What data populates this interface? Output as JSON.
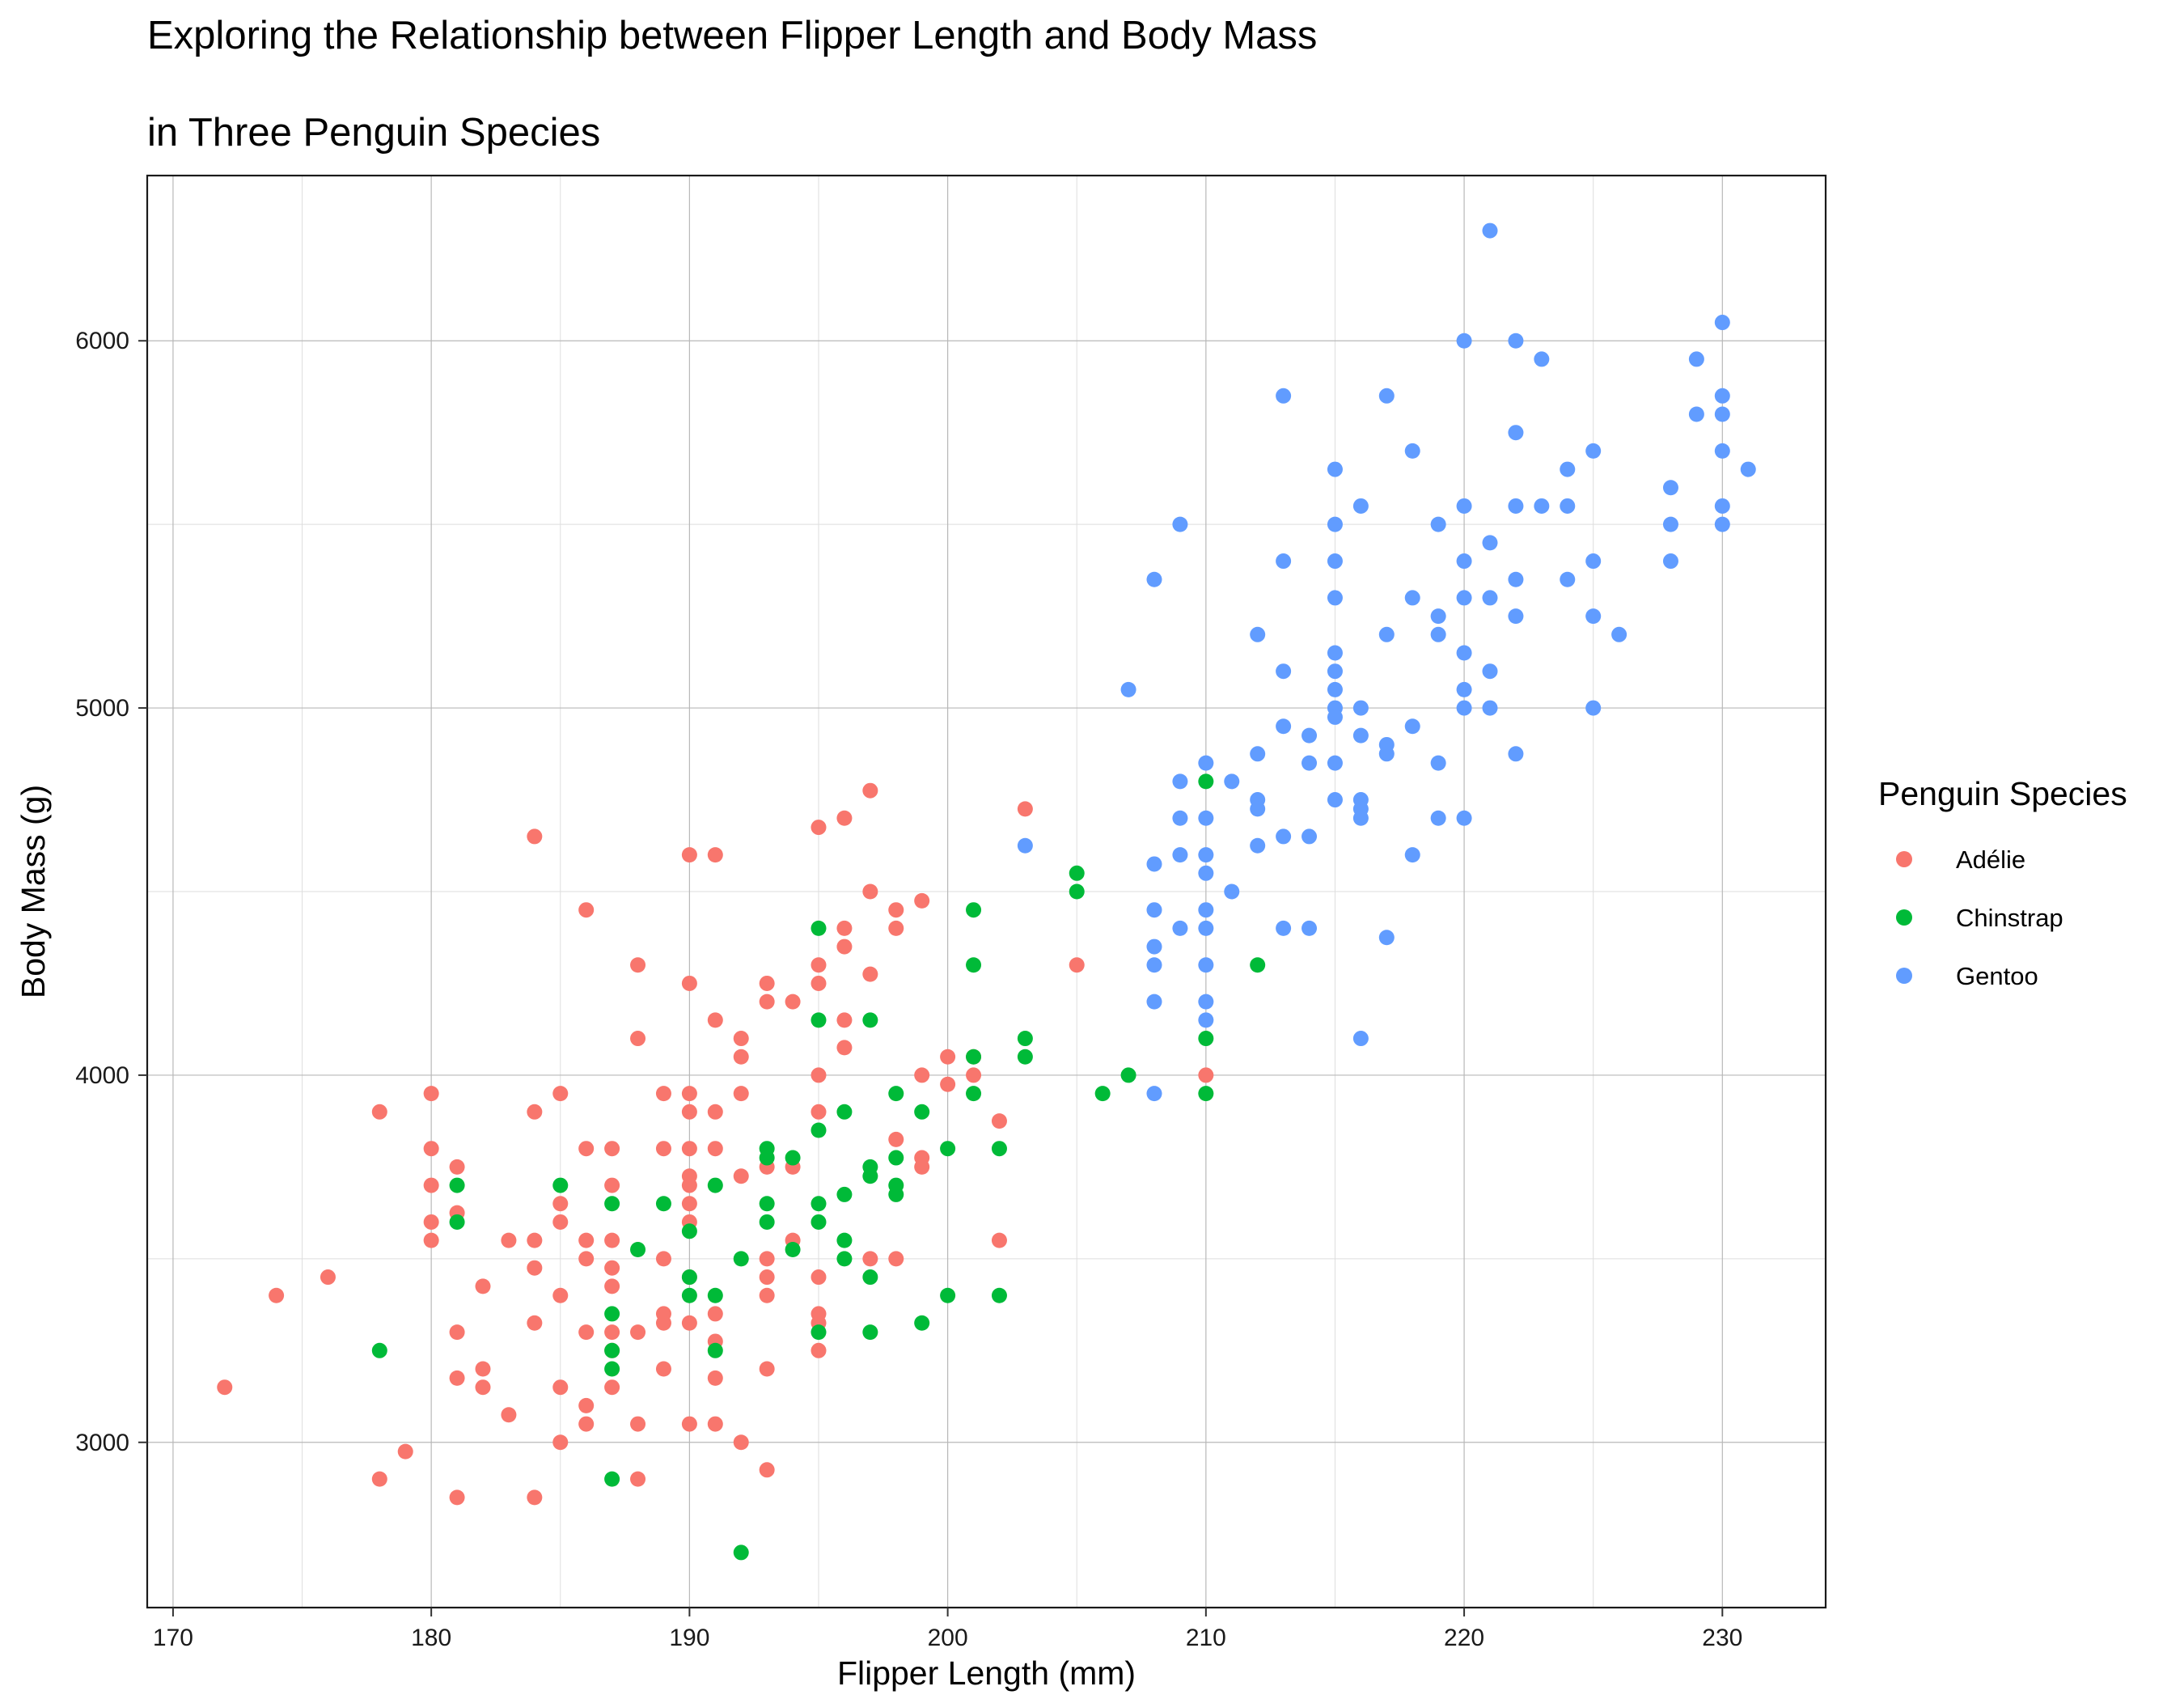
{
  "chart_data": {
    "type": "scatter",
    "title": "Exploring the Relationship between Flipper Length and Body Mass",
    "subtitle": "in Three Penguin Species",
    "xlabel": "Flipper Length (mm)",
    "ylabel": "Body Mass (g)",
    "xlim": [
      169,
      234
    ],
    "ylim": [
      2550,
      6450
    ],
    "x_ticks": [
      170,
      180,
      190,
      200,
      210,
      220,
      230
    ],
    "y_ticks": [
      3000,
      4000,
      5000,
      6000
    ],
    "grid": true,
    "legend": {
      "title": "Penguin Species",
      "position": "right"
    },
    "series": [
      {
        "name": "Adélie",
        "color": "#F8766D",
        "points": [
          [
            172,
            3150
          ],
          [
            174,
            3400
          ],
          [
            176,
            3450
          ],
          [
            178,
            3900
          ],
          [
            178,
            2900
          ],
          [
            179,
            2975
          ],
          [
            180,
            3950
          ],
          [
            180,
            3800
          ],
          [
            180,
            3700
          ],
          [
            180,
            3600
          ],
          [
            180,
            3550
          ],
          [
            181,
            3750
          ],
          [
            181,
            3625
          ],
          [
            181,
            3300
          ],
          [
            181,
            3175
          ],
          [
            181,
            2850
          ],
          [
            182,
            3425
          ],
          [
            182,
            3200
          ],
          [
            182,
            3150
          ],
          [
            183,
            3550
          ],
          [
            183,
            3075
          ],
          [
            184,
            4650
          ],
          [
            184,
            3900
          ],
          [
            184,
            3550
          ],
          [
            184,
            3475
          ],
          [
            184,
            3325
          ],
          [
            184,
            2850
          ],
          [
            185,
            3950
          ],
          [
            185,
            3650
          ],
          [
            185,
            3600
          ],
          [
            185,
            3400
          ],
          [
            185,
            3150
          ],
          [
            185,
            3000
          ],
          [
            186,
            4450
          ],
          [
            186,
            3800
          ],
          [
            186,
            3550
          ],
          [
            186,
            3500
          ],
          [
            186,
            3300
          ],
          [
            186,
            3100
          ],
          [
            186,
            3050
          ],
          [
            187,
            3800
          ],
          [
            187,
            3700
          ],
          [
            187,
            3550
          ],
          [
            187,
            3475
          ],
          [
            187,
            3425
          ],
          [
            187,
            3300
          ],
          [
            187,
            3250
          ],
          [
            187,
            3150
          ],
          [
            188,
            4300
          ],
          [
            188,
            4100
          ],
          [
            188,
            3300
          ],
          [
            188,
            3050
          ],
          [
            188,
            2900
          ],
          [
            189,
            3950
          ],
          [
            189,
            3800
          ],
          [
            189,
            3500
          ],
          [
            189,
            3350
          ],
          [
            189,
            3325
          ],
          [
            189,
            3200
          ],
          [
            190,
            4600
          ],
          [
            190,
            4250
          ],
          [
            190,
            3950
          ],
          [
            190,
            3900
          ],
          [
            190,
            3800
          ],
          [
            190,
            3725
          ],
          [
            190,
            3700
          ],
          [
            190,
            3650
          ],
          [
            190,
            3600
          ],
          [
            190,
            3450
          ],
          [
            190,
            3325
          ],
          [
            190,
            3050
          ],
          [
            191,
            4600
          ],
          [
            191,
            4150
          ],
          [
            191,
            3900
          ],
          [
            191,
            3800
          ],
          [
            191,
            3350
          ],
          [
            191,
            3275
          ],
          [
            191,
            3175
          ],
          [
            191,
            3050
          ],
          [
            192,
            4100
          ],
          [
            192,
            4050
          ],
          [
            192,
            3950
          ],
          [
            192,
            3725
          ],
          [
            192,
            3000
          ],
          [
            193,
            4250
          ],
          [
            193,
            4200
          ],
          [
            193,
            3750
          ],
          [
            193,
            3500
          ],
          [
            193,
            3450
          ],
          [
            193,
            3400
          ],
          [
            193,
            3200
          ],
          [
            193,
            2925
          ],
          [
            194,
            4200
          ],
          [
            194,
            3750
          ],
          [
            194,
            3550
          ],
          [
            195,
            4675
          ],
          [
            195,
            4300
          ],
          [
            195,
            4250
          ],
          [
            195,
            4000
          ],
          [
            195,
            3900
          ],
          [
            195,
            3450
          ],
          [
            195,
            3350
          ],
          [
            195,
            3325
          ],
          [
            195,
            3250
          ],
          [
            196,
            4700
          ],
          [
            196,
            4400
          ],
          [
            196,
            4350
          ],
          [
            196,
            4150
          ],
          [
            196,
            4075
          ],
          [
            197,
            4775
          ],
          [
            197,
            4500
          ],
          [
            197,
            4275
          ],
          [
            197,
            3500
          ],
          [
            198,
            4450
          ],
          [
            198,
            4400
          ],
          [
            198,
            3825
          ],
          [
            198,
            3500
          ],
          [
            199,
            4475
          ],
          [
            199,
            4000
          ],
          [
            199,
            3775
          ],
          [
            199,
            3750
          ],
          [
            200,
            4050
          ],
          [
            200,
            3975
          ],
          [
            201,
            4050
          ],
          [
            201,
            4000
          ],
          [
            202,
            3875
          ],
          [
            202,
            3550
          ],
          [
            203,
            4725
          ],
          [
            205,
            4300
          ],
          [
            210,
            4000
          ]
        ]
      },
      {
        "name": "Chinstrap",
        "color": "#00BA38",
        "points": [
          [
            178,
            3250
          ],
          [
            181,
            3700
          ],
          [
            181,
            3600
          ],
          [
            185,
            3700
          ],
          [
            187,
            3650
          ],
          [
            187,
            3350
          ],
          [
            187,
            3250
          ],
          [
            187,
            3200
          ],
          [
            187,
            2900
          ],
          [
            188,
            3525
          ],
          [
            189,
            3650
          ],
          [
            190,
            3575
          ],
          [
            190,
            3450
          ],
          [
            190,
            3400
          ],
          [
            191,
            3700
          ],
          [
            191,
            3400
          ],
          [
            191,
            3250
          ],
          [
            192,
            3500
          ],
          [
            192,
            2700
          ],
          [
            193,
            3800
          ],
          [
            193,
            3775
          ],
          [
            193,
            3650
          ],
          [
            193,
            3600
          ],
          [
            194,
            3775
          ],
          [
            194,
            3525
          ],
          [
            195,
            4400
          ],
          [
            195,
            4150
          ],
          [
            195,
            3850
          ],
          [
            195,
            3650
          ],
          [
            195,
            3600
          ],
          [
            195,
            3300
          ],
          [
            196,
            3900
          ],
          [
            196,
            3675
          ],
          [
            196,
            3550
          ],
          [
            196,
            3500
          ],
          [
            197,
            4150
          ],
          [
            197,
            3750
          ],
          [
            197,
            3725
          ],
          [
            197,
            3450
          ],
          [
            197,
            3300
          ],
          [
            198,
            3950
          ],
          [
            198,
            3775
          ],
          [
            198,
            3700
          ],
          [
            198,
            3675
          ],
          [
            199,
            3900
          ],
          [
            199,
            3325
          ],
          [
            200,
            3800
          ],
          [
            200,
            3400
          ],
          [
            201,
            4450
          ],
          [
            201,
            4300
          ],
          [
            201,
            4050
          ],
          [
            201,
            3950
          ],
          [
            202,
            3800
          ],
          [
            202,
            3400
          ],
          [
            203,
            4100
          ],
          [
            203,
            4050
          ],
          [
            205,
            4550
          ],
          [
            205,
            4500
          ],
          [
            206,
            3950
          ],
          [
            207,
            4000
          ],
          [
            210,
            4800
          ],
          [
            210,
            4100
          ],
          [
            210,
            3950
          ],
          [
            212,
            4300
          ]
        ]
      },
      {
        "name": "Gentoo",
        "color": "#619CFF",
        "points": [
          [
            203,
            4625
          ],
          [
            207,
            5050
          ],
          [
            208,
            5350
          ],
          [
            208,
            4575
          ],
          [
            208,
            4450
          ],
          [
            208,
            4350
          ],
          [
            208,
            4300
          ],
          [
            208,
            4200
          ],
          [
            208,
            3950
          ],
          [
            209,
            5500
          ],
          [
            209,
            4800
          ],
          [
            209,
            4700
          ],
          [
            209,
            4600
          ],
          [
            209,
            4400
          ],
          [
            210,
            4850
          ],
          [
            210,
            4700
          ],
          [
            210,
            4600
          ],
          [
            210,
            4550
          ],
          [
            210,
            4450
          ],
          [
            210,
            4400
          ],
          [
            210,
            4300
          ],
          [
            210,
            4200
          ],
          [
            210,
            4150
          ],
          [
            211,
            4800
          ],
          [
            211,
            4500
          ],
          [
            212,
            5200
          ],
          [
            212,
            4875
          ],
          [
            212,
            4750
          ],
          [
            212,
            4725
          ],
          [
            212,
            4625
          ],
          [
            213,
            5850
          ],
          [
            213,
            5400
          ],
          [
            213,
            5100
          ],
          [
            213,
            4950
          ],
          [
            213,
            4650
          ],
          [
            213,
            4400
          ],
          [
            214,
            4925
          ],
          [
            214,
            4850
          ],
          [
            214,
            4650
          ],
          [
            214,
            4400
          ],
          [
            215,
            5650
          ],
          [
            215,
            5500
          ],
          [
            215,
            5400
          ],
          [
            215,
            5300
          ],
          [
            215,
            5150
          ],
          [
            215,
            5100
          ],
          [
            215,
            5050
          ],
          [
            215,
            5000
          ],
          [
            215,
            4975
          ],
          [
            215,
            4850
          ],
          [
            215,
            4750
          ],
          [
            216,
            5550
          ],
          [
            216,
            5000
          ],
          [
            216,
            4925
          ],
          [
            216,
            4750
          ],
          [
            216,
            4725
          ],
          [
            216,
            4700
          ],
          [
            216,
            4100
          ],
          [
            217,
            5850
          ],
          [
            217,
            5200
          ],
          [
            217,
            4900
          ],
          [
            217,
            4875
          ],
          [
            217,
            4375
          ],
          [
            218,
            5700
          ],
          [
            218,
            5300
          ],
          [
            218,
            4950
          ],
          [
            218,
            4600
          ],
          [
            219,
            5500
          ],
          [
            219,
            5250
          ],
          [
            219,
            5200
          ],
          [
            219,
            4850
          ],
          [
            219,
            4700
          ],
          [
            220,
            6000
          ],
          [
            220,
            5550
          ],
          [
            220,
            5400
          ],
          [
            220,
            5300
          ],
          [
            220,
            5150
          ],
          [
            220,
            5050
          ],
          [
            220,
            5000
          ],
          [
            220,
            4700
          ],
          [
            221,
            6300
          ],
          [
            221,
            5450
          ],
          [
            221,
            5300
          ],
          [
            221,
            5100
          ],
          [
            221,
            5000
          ],
          [
            222,
            6000
          ],
          [
            222,
            5750
          ],
          [
            222,
            5550
          ],
          [
            222,
            5350
          ],
          [
            222,
            5250
          ],
          [
            222,
            4875
          ],
          [
            223,
            5950
          ],
          [
            223,
            5550
          ],
          [
            224,
            5650
          ],
          [
            224,
            5550
          ],
          [
            224,
            5350
          ],
          [
            225,
            5700
          ],
          [
            225,
            5400
          ],
          [
            225,
            5250
          ],
          [
            225,
            5000
          ],
          [
            226,
            5200
          ],
          [
            228,
            5600
          ],
          [
            228,
            5500
          ],
          [
            228,
            5400
          ],
          [
            229,
            5950
          ],
          [
            229,
            5800
          ],
          [
            230,
            6050
          ],
          [
            230,
            5850
          ],
          [
            230,
            5800
          ],
          [
            230,
            5700
          ],
          [
            230,
            5550
          ],
          [
            230,
            5500
          ],
          [
            231,
            5650
          ]
        ]
      }
    ]
  }
}
